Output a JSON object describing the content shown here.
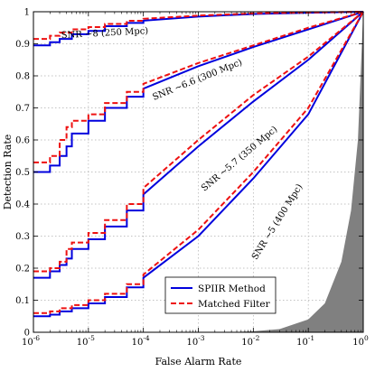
{
  "chart_data": {
    "type": "line",
    "xlabel": "False Alarm Rate",
    "ylabel": "Detection Rate",
    "xscale": "log",
    "xlim": [
      1e-06,
      1
    ],
    "ylim": [
      0,
      1
    ],
    "grid": true,
    "x_tick_labels": [
      {
        "base": "10",
        "exp": "-6",
        "value": 1e-06
      },
      {
        "base": "10",
        "exp": "-5",
        "value": 1e-05
      },
      {
        "base": "10",
        "exp": "-4",
        "value": 0.0001
      },
      {
        "base": "10",
        "exp": "-3",
        "value": 0.001
      },
      {
        "base": "10",
        "exp": "-2",
        "value": 0.01
      },
      {
        "base": "10",
        "exp": "-1",
        "value": 0.1
      },
      {
        "base": "10",
        "exp": "0",
        "value": 1
      }
    ],
    "y_tick_labels": [
      "0",
      "0.1",
      "0.2",
      "0.3",
      "0.4",
      "0.5",
      "0.6",
      "0.7",
      "0.8",
      "0.9",
      "1"
    ],
    "legend": {
      "position": "bottom-right",
      "entries": [
        {
          "label": "SPIIR Method",
          "color": "#0000dd",
          "style": "solid"
        },
        {
          "label": "Matched Filter",
          "color": "#ee1111",
          "style": "dashed"
        }
      ]
    },
    "shaded_region": {
      "label": "",
      "color": "#808080",
      "description_values": {
        "x": [
          0.003,
          0.01,
          0.03,
          0.1,
          0.2,
          0.4,
          0.6,
          0.8,
          1.0
        ],
        "y": [
          0.0,
          0.003,
          0.01,
          0.04,
          0.09,
          0.22,
          0.38,
          0.6,
          1.0
        ]
      }
    },
    "series": [
      {
        "name": "SPIIR Method",
        "annotation": "SNR ~8 (250 Mpc)",
        "x": [
          1e-06,
          2e-06,
          3e-06,
          5e-06,
          1e-05,
          2e-05,
          5e-05,
          0.0001,
          0.001,
          0.01,
          0.1,
          1
        ],
        "y": [
          0.895,
          0.905,
          0.915,
          0.93,
          0.94,
          0.955,
          0.965,
          0.972,
          0.985,
          0.993,
          0.997,
          1.0
        ]
      },
      {
        "name": "Matched Filter",
        "annotation": "SNR ~8 (250 Mpc)",
        "x": [
          1e-06,
          2e-06,
          3e-06,
          5e-06,
          1e-05,
          2e-05,
          5e-05,
          0.0001,
          0.001,
          0.01,
          0.1,
          1
        ],
        "y": [
          0.915,
          0.925,
          0.935,
          0.945,
          0.952,
          0.962,
          0.972,
          0.978,
          0.988,
          0.995,
          0.998,
          1.0
        ]
      },
      {
        "name": "SPIIR Method",
        "annotation": "SNR ~6.6 (300 Mpc)",
        "x": [
          1e-06,
          2e-06,
          3e-06,
          4e-06,
          5e-06,
          1e-05,
          2e-05,
          5e-05,
          0.0001,
          0.001,
          0.01,
          0.1,
          1
        ],
        "y": [
          0.5,
          0.52,
          0.55,
          0.58,
          0.62,
          0.66,
          0.7,
          0.735,
          0.76,
          0.83,
          0.89,
          0.945,
          1.0
        ]
      },
      {
        "name": "Matched Filter",
        "annotation": "SNR ~6.6 (300 Mpc)",
        "x": [
          1e-06,
          2e-06,
          3e-06,
          4e-06,
          5e-06,
          1e-05,
          2e-05,
          5e-05,
          0.0001,
          0.001,
          0.01,
          0.1,
          1
        ],
        "y": [
          0.53,
          0.55,
          0.6,
          0.64,
          0.66,
          0.68,
          0.715,
          0.75,
          0.775,
          0.84,
          0.895,
          0.95,
          1.0
        ]
      },
      {
        "name": "SPIIR Method",
        "annotation": "SNR ~5.7 (350 Mpc)",
        "x": [
          1e-06,
          2e-06,
          3e-06,
          4e-06,
          5e-06,
          1e-05,
          2e-05,
          5e-05,
          0.0001,
          0.001,
          0.01,
          0.1,
          1
        ],
        "y": [
          0.17,
          0.19,
          0.21,
          0.23,
          0.26,
          0.29,
          0.33,
          0.38,
          0.43,
          0.58,
          0.72,
          0.85,
          1.0
        ]
      },
      {
        "name": "Matched Filter",
        "annotation": "SNR ~5.7 (350 Mpc)",
        "x": [
          1e-06,
          2e-06,
          3e-06,
          4e-06,
          5e-06,
          1e-05,
          2e-05,
          5e-05,
          0.0001,
          0.001,
          0.01,
          0.1,
          1
        ],
        "y": [
          0.19,
          0.2,
          0.22,
          0.26,
          0.28,
          0.31,
          0.35,
          0.4,
          0.45,
          0.6,
          0.74,
          0.86,
          1.0
        ]
      },
      {
        "name": "SPIIR Method",
        "annotation": "SNR ~5 (400 Mpc)",
        "x": [
          1e-06,
          2e-06,
          3e-06,
          5e-06,
          1e-05,
          2e-05,
          5e-05,
          0.0001,
          0.001,
          0.01,
          0.1,
          1
        ],
        "y": [
          0.05,
          0.055,
          0.065,
          0.075,
          0.09,
          0.11,
          0.14,
          0.17,
          0.3,
          0.48,
          0.68,
          1.0
        ]
      },
      {
        "name": "Matched Filter",
        "annotation": "SNR ~5 (400 Mpc)",
        "x": [
          1e-06,
          2e-06,
          3e-06,
          5e-06,
          1e-05,
          2e-05,
          5e-05,
          0.0001,
          0.001,
          0.01,
          0.1,
          1
        ],
        "y": [
          0.06,
          0.065,
          0.075,
          0.085,
          0.1,
          0.12,
          0.15,
          0.18,
          0.32,
          0.5,
          0.7,
          1.0
        ]
      }
    ],
    "annotations": [
      {
        "text": "SNR ~8 (250 Mpc)",
        "x": 2e-05,
        "y": 0.925,
        "rotate": -3
      },
      {
        "text": "SNR ~6.6 (300 Mpc)",
        "x": 0.001,
        "y": 0.78,
        "rotate": -22
      },
      {
        "text": "SNR ~5.7 (350 Mpc)",
        "x": 0.006,
        "y": 0.535,
        "rotate": -40
      },
      {
        "text": "SNR ~5 (400 Mpc)",
        "x": 0.03,
        "y": 0.34,
        "rotate": -58
      }
    ]
  }
}
